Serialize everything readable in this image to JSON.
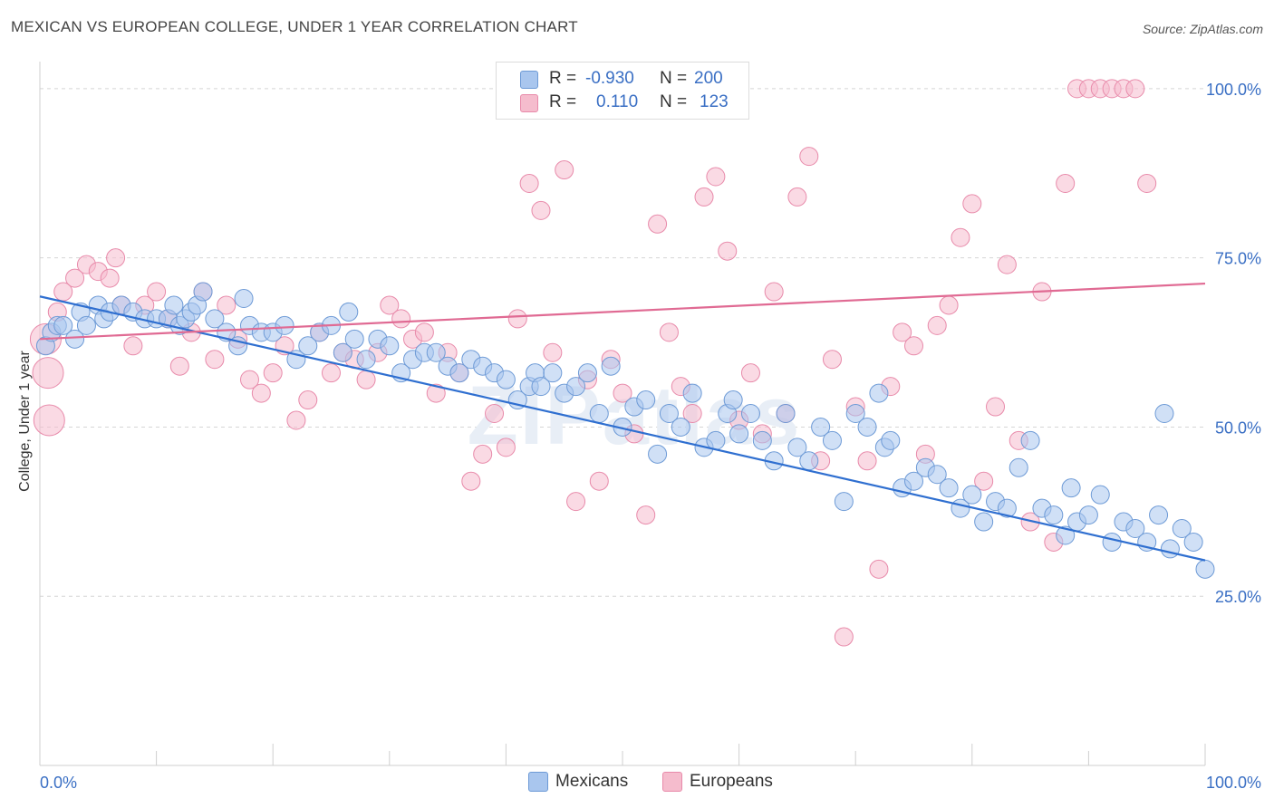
{
  "title": "MEXICAN VS EUROPEAN COLLEGE, UNDER 1 YEAR CORRELATION CHART",
  "source": "Source: ZipAtlas.com",
  "watermark": "ZIPatlas",
  "colors": {
    "mexicans_fill": "#a9c6ee",
    "mexicans_stroke": "#6d9ad6",
    "mexicans_line": "#2f6fd0",
    "europeans_fill": "#f5bccd",
    "europeans_stroke": "#e88aaa",
    "europeans_line": "#e06a93",
    "grid": "#d5d5d5",
    "tick_label": "#3a6fc4"
  },
  "legend": {
    "rows": [
      {
        "r_label": "R =",
        "r_value": "-0.930",
        "n_label": "N =",
        "n_value": "200"
      },
      {
        "r_label": "R =",
        "r_value": "0.110",
        "n_label": "N =",
        "n_value": "123"
      }
    ]
  },
  "bottom_legend": {
    "mexicans": "Mexicans",
    "europeans": "Europeans"
  },
  "chart_data": {
    "type": "scatter",
    "title": "MEXICAN VS EUROPEAN COLLEGE, UNDER 1 YEAR CORRELATION CHART",
    "xlabel": "",
    "ylabel": "College, Under 1 year",
    "xlim": [
      0,
      100
    ],
    "ylim": [
      0,
      104
    ],
    "x_tick_labels": [
      "0.0%",
      "100.0%"
    ],
    "y_ticks": [
      25,
      50,
      75,
      100
    ],
    "y_tick_labels": [
      "25.0%",
      "50.0%",
      "75.0%",
      "100.0%"
    ],
    "grid": true,
    "legend_placement": "top-center",
    "series": [
      {
        "name": "Mexicans",
        "r": -0.93,
        "n": 200,
        "trend": {
          "x": [
            0,
            100
          ],
          "y": [
            69.3,
            30.3
          ]
        },
        "points": [
          [
            0.5,
            62
          ],
          [
            1,
            64
          ],
          [
            1.5,
            65
          ],
          [
            2,
            65
          ],
          [
            3,
            63
          ],
          [
            3.5,
            67
          ],
          [
            4,
            65
          ],
          [
            5,
            68
          ],
          [
            5.5,
            66
          ],
          [
            6,
            67
          ],
          [
            7,
            68
          ],
          [
            8,
            67
          ],
          [
            9,
            66
          ],
          [
            10,
            66
          ],
          [
            11,
            66
          ],
          [
            11.5,
            68
          ],
          [
            12,
            65
          ],
          [
            12.5,
            66
          ],
          [
            13,
            67
          ],
          [
            13.5,
            68
          ],
          [
            14,
            70
          ],
          [
            15,
            66
          ],
          [
            16,
            64
          ],
          [
            17,
            62
          ],
          [
            17.5,
            69
          ],
          [
            18,
            65
          ],
          [
            19,
            64
          ],
          [
            20,
            64
          ],
          [
            21,
            65
          ],
          [
            22,
            60
          ],
          [
            23,
            62
          ],
          [
            24,
            64
          ],
          [
            25,
            65
          ],
          [
            26,
            61
          ],
          [
            26.5,
            67
          ],
          [
            27,
            63
          ],
          [
            28,
            60
          ],
          [
            29,
            63
          ],
          [
            30,
            62
          ],
          [
            31,
            58
          ],
          [
            32,
            60
          ],
          [
            33,
            61
          ],
          [
            34,
            61
          ],
          [
            35,
            59
          ],
          [
            36,
            58
          ],
          [
            37,
            60
          ],
          [
            38,
            59
          ],
          [
            39,
            58
          ],
          [
            40,
            57
          ],
          [
            41,
            54
          ],
          [
            42,
            56
          ],
          [
            42.5,
            58
          ],
          [
            43,
            56
          ],
          [
            44,
            58
          ],
          [
            45,
            55
          ],
          [
            46,
            56
          ],
          [
            47,
            58
          ],
          [
            48,
            52
          ],
          [
            49,
            59
          ],
          [
            50,
            50
          ],
          [
            51,
            53
          ],
          [
            52,
            54
          ],
          [
            53,
            46
          ],
          [
            54,
            52
          ],
          [
            55,
            50
          ],
          [
            56,
            55
          ],
          [
            57,
            47
          ],
          [
            58,
            48
          ],
          [
            59,
            52
          ],
          [
            59.5,
            54
          ],
          [
            60,
            49
          ],
          [
            61,
            52
          ],
          [
            62,
            48
          ],
          [
            63,
            45
          ],
          [
            64,
            52
          ],
          [
            65,
            47
          ],
          [
            66,
            45
          ],
          [
            67,
            50
          ],
          [
            68,
            48
          ],
          [
            69,
            39
          ],
          [
            70,
            52
          ],
          [
            71,
            50
          ],
          [
            72,
            55
          ],
          [
            72.5,
            47
          ],
          [
            73,
            48
          ],
          [
            74,
            41
          ],
          [
            75,
            42
          ],
          [
            76,
            44
          ],
          [
            77,
            43
          ],
          [
            78,
            41
          ],
          [
            79,
            38
          ],
          [
            80,
            40
          ],
          [
            81,
            36
          ],
          [
            82,
            39
          ],
          [
            83,
            38
          ],
          [
            84,
            44
          ],
          [
            85,
            48
          ],
          [
            86,
            38
          ],
          [
            87,
            37
          ],
          [
            88,
            34
          ],
          [
            88.5,
            41
          ],
          [
            89,
            36
          ],
          [
            90,
            37
          ],
          [
            91,
            40
          ],
          [
            92,
            33
          ],
          [
            93,
            36
          ],
          [
            94,
            35
          ],
          [
            95,
            33
          ],
          [
            96,
            37
          ],
          [
            96.5,
            52
          ],
          [
            97,
            32
          ],
          [
            98,
            35
          ],
          [
            99,
            33
          ],
          [
            100,
            29
          ]
        ]
      },
      {
        "name": "Europeans",
        "r": 0.11,
        "n": 123,
        "trend": {
          "x": [
            0,
            100
          ],
          "y": [
            63.0,
            71.2
          ]
        },
        "points": [
          [
            0.5,
            63
          ],
          [
            0.7,
            58
          ],
          [
            0.8,
            51
          ],
          [
            1.5,
            67
          ],
          [
            2,
            70
          ],
          [
            3,
            72
          ],
          [
            4,
            74
          ],
          [
            5,
            73
          ],
          [
            6,
            72
          ],
          [
            6.5,
            75
          ],
          [
            7,
            68
          ],
          [
            8,
            62
          ],
          [
            9,
            68
          ],
          [
            10,
            70
          ],
          [
            11,
            66
          ],
          [
            12,
            59
          ],
          [
            13,
            64
          ],
          [
            14,
            70
          ],
          [
            15,
            60
          ],
          [
            16,
            68
          ],
          [
            17,
            63
          ],
          [
            18,
            57
          ],
          [
            19,
            55
          ],
          [
            20,
            58
          ],
          [
            21,
            62
          ],
          [
            22,
            51
          ],
          [
            23,
            54
          ],
          [
            24,
            64
          ],
          [
            25,
            58
          ],
          [
            26,
            61
          ],
          [
            27,
            60
          ],
          [
            28,
            57
          ],
          [
            29,
            61
          ],
          [
            30,
            68
          ],
          [
            31,
            66
          ],
          [
            32,
            63
          ],
          [
            33,
            64
          ],
          [
            34,
            55
          ],
          [
            35,
            61
          ],
          [
            36,
            58
          ],
          [
            37,
            42
          ],
          [
            38,
            46
          ],
          [
            39,
            52
          ],
          [
            40,
            47
          ],
          [
            41,
            66
          ],
          [
            42,
            86
          ],
          [
            43,
            82
          ],
          [
            44,
            61
          ],
          [
            45,
            88
          ],
          [
            46,
            39
          ],
          [
            47,
            57
          ],
          [
            48,
            42
          ],
          [
            49,
            60
          ],
          [
            50,
            55
          ],
          [
            51,
            49
          ],
          [
            52,
            37
          ],
          [
            53,
            80
          ],
          [
            54,
            64
          ],
          [
            55,
            56
          ],
          [
            56,
            52
          ],
          [
            57,
            84
          ],
          [
            58,
            87
          ],
          [
            59,
            76
          ],
          [
            60,
            51
          ],
          [
            61,
            58
          ],
          [
            62,
            49
          ],
          [
            63,
            70
          ],
          [
            64,
            52
          ],
          [
            65,
            84
          ],
          [
            66,
            90
          ],
          [
            67,
            45
          ],
          [
            68,
            60
          ],
          [
            69,
            19
          ],
          [
            70,
            53
          ],
          [
            71,
            45
          ],
          [
            72,
            29
          ],
          [
            73,
            56
          ],
          [
            74,
            64
          ],
          [
            75,
            62
          ],
          [
            76,
            46
          ],
          [
            77,
            65
          ],
          [
            78,
            68
          ],
          [
            79,
            78
          ],
          [
            80,
            83
          ],
          [
            81,
            42
          ],
          [
            82,
            53
          ],
          [
            83,
            74
          ],
          [
            84,
            48
          ],
          [
            85,
            36
          ],
          [
            86,
            70
          ],
          [
            87,
            33
          ],
          [
            88,
            86
          ],
          [
            89,
            100
          ],
          [
            90,
            100
          ],
          [
            91,
            100
          ],
          [
            92,
            100
          ],
          [
            93,
            100
          ],
          [
            94,
            100
          ],
          [
            95,
            86
          ]
        ]
      }
    ]
  }
}
